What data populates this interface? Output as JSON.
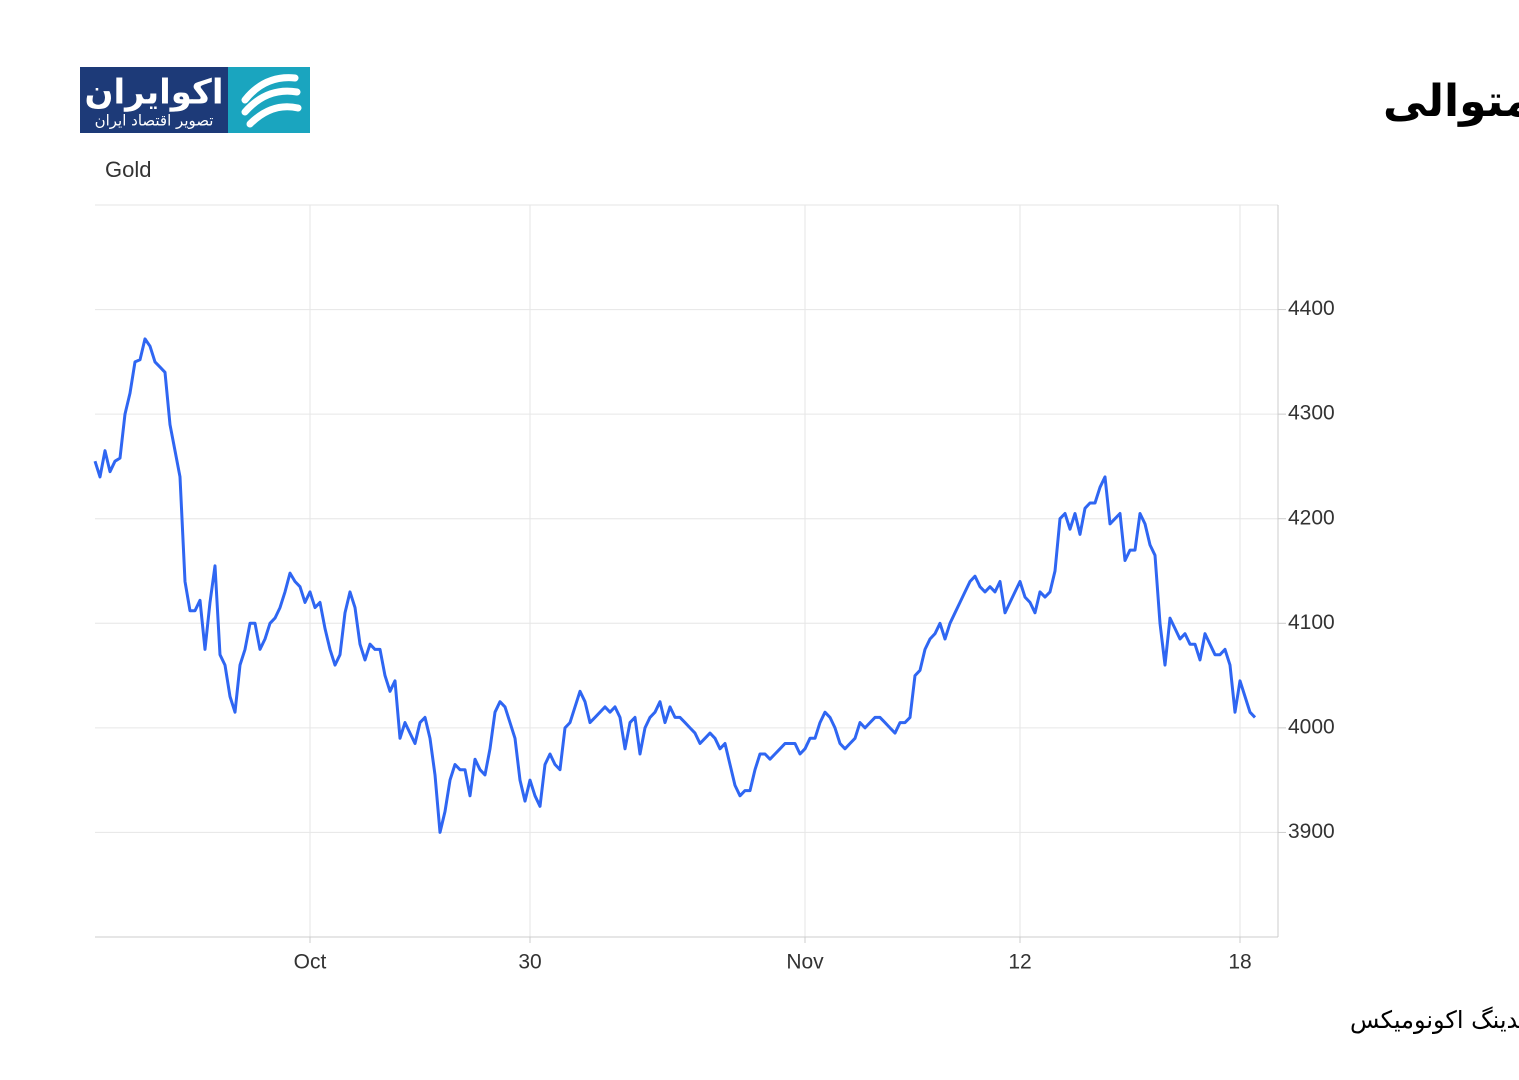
{
  "chart_data": {
    "type": "line",
    "title": "ریزش طلای جهانی برای چهارمین روز متوالی",
    "brand": {
      "name": "اکوایران",
      "tagline": "تصویر اقتصاد ایران"
    },
    "ylabel": "Gold",
    "source": "منبع: تریدینگ اکونومیکس",
    "color": "#2f66f2",
    "grid": true,
    "ylim": [
      3800,
      4500
    ],
    "yticks": [
      3900,
      4000,
      4100,
      4200,
      4300,
      4400
    ],
    "xlim": [
      0,
      236.6
    ],
    "xticks": [
      {
        "value": 43,
        "label": "Oct"
      },
      {
        "value": 87,
        "label": "30"
      },
      {
        "value": 142,
        "label": "Nov"
      },
      {
        "value": 185,
        "label": "12"
      },
      {
        "value": 229,
        "label": "18"
      }
    ],
    "values": [
      4255,
      4240,
      4265,
      4245,
      4255,
      4258,
      4300,
      4320,
      4350,
      4352,
      4372,
      4365,
      4350,
      4345,
      4340,
      4290,
      4265,
      4240,
      4140,
      4112,
      4112,
      4122,
      4075,
      4120,
      4155,
      4070,
      4060,
      4030,
      4015,
      4060,
      4075,
      4100,
      4100,
      4075,
      4085,
      4100,
      4105,
      4115,
      4130,
      4148,
      4140,
      4135,
      4120,
      4130,
      4115,
      4120,
      4095,
      4075,
      4060,
      4070,
      4110,
      4130,
      4115,
      4080,
      4065,
      4080,
      4075,
      4075,
      4050,
      4035,
      4045,
      3990,
      4005,
      3995,
      3985,
      4005,
      4010,
      3990,
      3955,
      3900,
      3920,
      3950,
      3965,
      3960,
      3960,
      3935,
      3970,
      3960,
      3955,
      3980,
      4015,
      4025,
      4020,
      4005,
      3990,
      3950,
      3930,
      3950,
      3935,
      3925,
      3965,
      3975,
      3965,
      3960,
      4000,
      4005,
      4020,
      4035,
      4025,
      4005,
      4010,
      4015,
      4020,
      4015,
      4020,
      4010,
      3980,
      4005,
      4010,
      3975,
      4000,
      4010,
      4015,
      4025,
      4005,
      4020,
      4010,
      4010,
      4005,
      4000,
      3995,
      3985,
      3990,
      3995,
      3990,
      3980,
      3985,
      3965,
      3945,
      3935,
      3940,
      3940,
      3960,
      3975,
      3975,
      3970,
      3975,
      3980,
      3985,
      3985,
      3985,
      3975,
      3980,
      3990,
      3990,
      4005,
      4015,
      4010,
      4000,
      3985,
      3980,
      3985,
      3990,
      4005,
      4000,
      4005,
      4010,
      4010,
      4005,
      4000,
      3995,
      4005,
      4005,
      4010,
      4050,
      4055,
      4075,
      4085,
      4090,
      4100,
      4085,
      4100,
      4110,
      4120,
      4130,
      4140,
      4145,
      4135,
      4130,
      4135,
      4130,
      4140,
      4110,
      4120,
      4130,
      4140,
      4125,
      4120,
      4110,
      4130,
      4125,
      4130,
      4150,
      4200,
      4205,
      4190,
      4205,
      4185,
      4210,
      4215,
      4215,
      4230,
      4240,
      4195,
      4200,
      4205,
      4160,
      4170,
      4170,
      4205,
      4195,
      4175,
      4165,
      4100,
      4060,
      4105,
      4095,
      4085,
      4090,
      4080,
      4080,
      4065,
      4090,
      4080,
      4070,
      4070,
      4075,
      4060,
      4015,
      4045,
      4030,
      4015,
      4010
    ]
  }
}
